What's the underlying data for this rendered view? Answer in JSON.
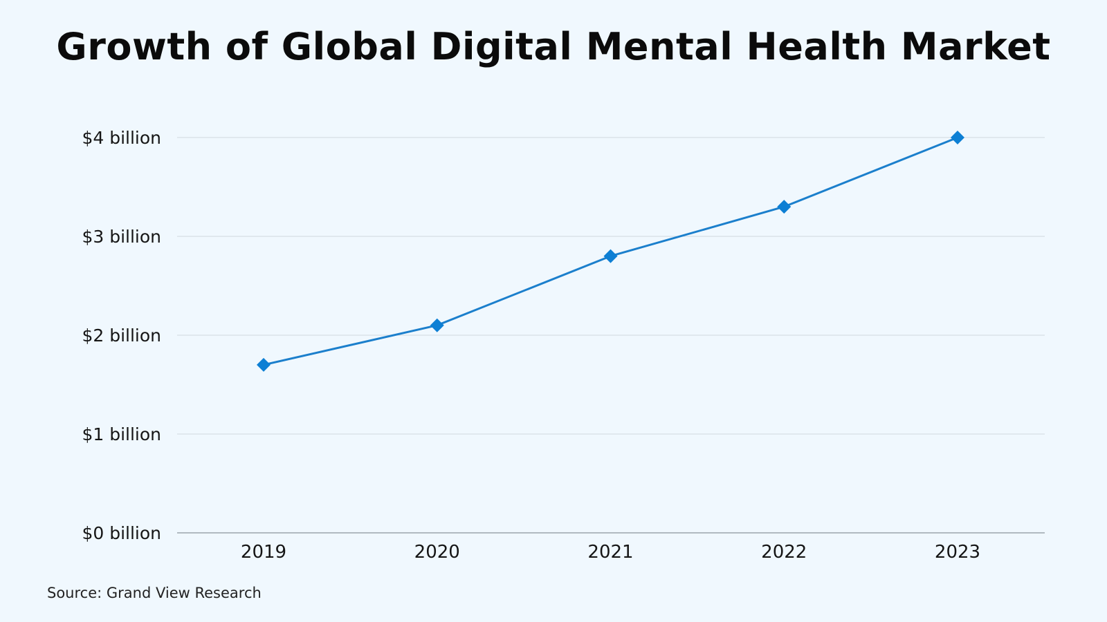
{
  "chart_data": {
    "type": "line",
    "title": "Growth of Global Digital Mental Health Market",
    "xlabel": "",
    "ylabel": "",
    "categories": [
      "2019",
      "2020",
      "2021",
      "2022",
      "2023"
    ],
    "series": [
      {
        "values": [
          1.7,
          2.1,
          2.8,
          3.3,
          4.0
        ]
      }
    ],
    "ylim": [
      0,
      4
    ],
    "yticks": [
      {
        "value": 0,
        "label": "$0 billion"
      },
      {
        "value": 1,
        "label": "$1 billion"
      },
      {
        "value": 2,
        "label": "$2 billion"
      },
      {
        "value": 3,
        "label": "$3 billion"
      },
      {
        "value": 4,
        "label": "$4 billion"
      }
    ],
    "grid": true,
    "legend": "none",
    "marker": "diamond",
    "colors": {
      "line": "#1b7fcc",
      "marker": "#0d7fd4",
      "grid": "#cfd8de",
      "axis": "#9aa4ab",
      "background": "#f0f8fe"
    }
  },
  "source": "Source: Grand View Research"
}
